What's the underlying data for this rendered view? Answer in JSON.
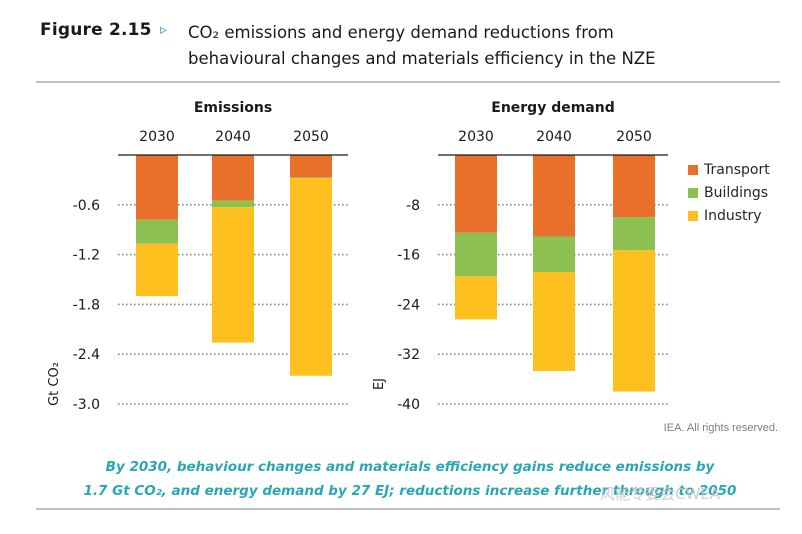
{
  "header": {
    "figure_label": "Figure 2.15",
    "arrow": "▹",
    "title_line1": "CO₂ emissions and energy demand reductions from",
    "title_line2": "behavioural changes and materials efficiency in the NZE"
  },
  "legend": [
    {
      "name": "Transport",
      "color": "#e8702a"
    },
    {
      "name": "Buildings",
      "color": "#8cc152"
    },
    {
      "name": "Industry",
      "color": "#fdc01e"
    }
  ],
  "credit": "IEA. All rights reserved.",
  "caption": {
    "line1": "By 2030, behaviour changes and materials efficiency gains reduce emissions by",
    "line2": "1.7 Gt CO₂, and energy demand by 27 EJ; reductions increase further through to 2050"
  },
  "watermark": "风能专委会CWEA",
  "chart_data": [
    {
      "type": "bar",
      "stacked": true,
      "title": "Emissions",
      "categories": [
        "2030",
        "2040",
        "2050"
      ],
      "ylabel": "Gt CO₂",
      "ylim": [
        -3.0,
        0
      ],
      "yticks": [
        "-0.6",
        "-1.2",
        "-1.8",
        "-2.4",
        "-3.0"
      ],
      "series": [
        {
          "name": "Transport",
          "values": [
            -0.78,
            -0.55,
            -0.27
          ]
        },
        {
          "name": "Buildings",
          "values": [
            -0.29,
            -0.08,
            -0.01
          ]
        },
        {
          "name": "Industry",
          "values": [
            -0.63,
            -1.63,
            -2.38
          ]
        }
      ]
    },
    {
      "type": "bar",
      "stacked": true,
      "title": "Energy demand",
      "categories": [
        "2030",
        "2040",
        "2050"
      ],
      "ylabel": "EJ",
      "ylim": [
        -40,
        0
      ],
      "yticks": [
        "-8",
        "-16",
        "-24",
        "-32",
        "-40"
      ],
      "series": [
        {
          "name": "Transport",
          "values": [
            -12.5,
            -13.1,
            -10.0
          ]
        },
        {
          "name": "Buildings",
          "values": [
            -7.0,
            -5.7,
            -5.3
          ]
        },
        {
          "name": "Industry",
          "values": [
            -6.9,
            -15.9,
            -22.7
          ]
        }
      ]
    }
  ]
}
